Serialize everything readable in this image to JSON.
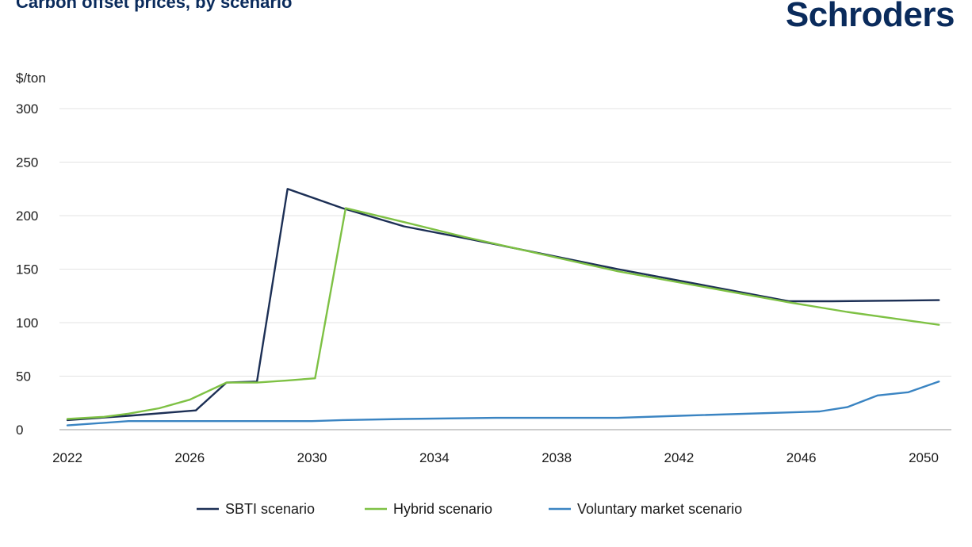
{
  "header": {
    "title": "Carbon offset prices, by scenario",
    "logo": "Schroders"
  },
  "footnote": "",
  "chart_data": {
    "type": "line",
    "title": "Carbon offset prices, by scenario",
    "ylabel": "$/ton",
    "xlabel": "",
    "xlim": [
      2022,
      2050.5
    ],
    "ylim": [
      0,
      300
    ],
    "x_ticks": [
      2022,
      2026,
      2030,
      2034,
      2038,
      2042,
      2046,
      2050
    ],
    "y_ticks": [
      0,
      50,
      100,
      150,
      200,
      250,
      300
    ],
    "grid": "horizontal",
    "legend_position": "bottom",
    "series": [
      {
        "name": "SBTI scenario",
        "color": "#1c2f55",
        "points": [
          [
            2022,
            9
          ],
          [
            2024,
            13
          ],
          [
            2026.2,
            18
          ],
          [
            2027.2,
            44
          ],
          [
            2028.2,
            45
          ],
          [
            2029.2,
            225
          ],
          [
            2031,
            207
          ],
          [
            2033,
            190
          ],
          [
            2035,
            179
          ],
          [
            2040,
            150
          ],
          [
            2045.6,
            120
          ],
          [
            2047,
            120
          ],
          [
            2050.5,
            121
          ]
        ]
      },
      {
        "name": "Hybrid scenario",
        "color": "#7ec144",
        "points": [
          [
            2022,
            10
          ],
          [
            2023.2,
            12
          ],
          [
            2024,
            15
          ],
          [
            2025,
            20
          ],
          [
            2026,
            28
          ],
          [
            2027.2,
            44
          ],
          [
            2028.2,
            44
          ],
          [
            2029.2,
            46
          ],
          [
            2030.1,
            48
          ],
          [
            2031.1,
            207
          ],
          [
            2033,
            194
          ],
          [
            2035,
            180
          ],
          [
            2040,
            148
          ],
          [
            2045.6,
            119
          ],
          [
            2047.5,
            110
          ],
          [
            2050.5,
            98
          ]
        ]
      },
      {
        "name": "Voluntary market scenario",
        "color": "#3a84c2",
        "points": [
          [
            2022,
            4
          ],
          [
            2024,
            8
          ],
          [
            2030,
            8
          ],
          [
            2031,
            9
          ],
          [
            2033,
            10
          ],
          [
            2036,
            11
          ],
          [
            2040,
            11
          ],
          [
            2042,
            13
          ],
          [
            2046.6,
            17
          ],
          [
            2047.5,
            21
          ],
          [
            2048.5,
            32
          ],
          [
            2049.5,
            35
          ],
          [
            2050.5,
            45
          ]
        ]
      }
    ]
  }
}
